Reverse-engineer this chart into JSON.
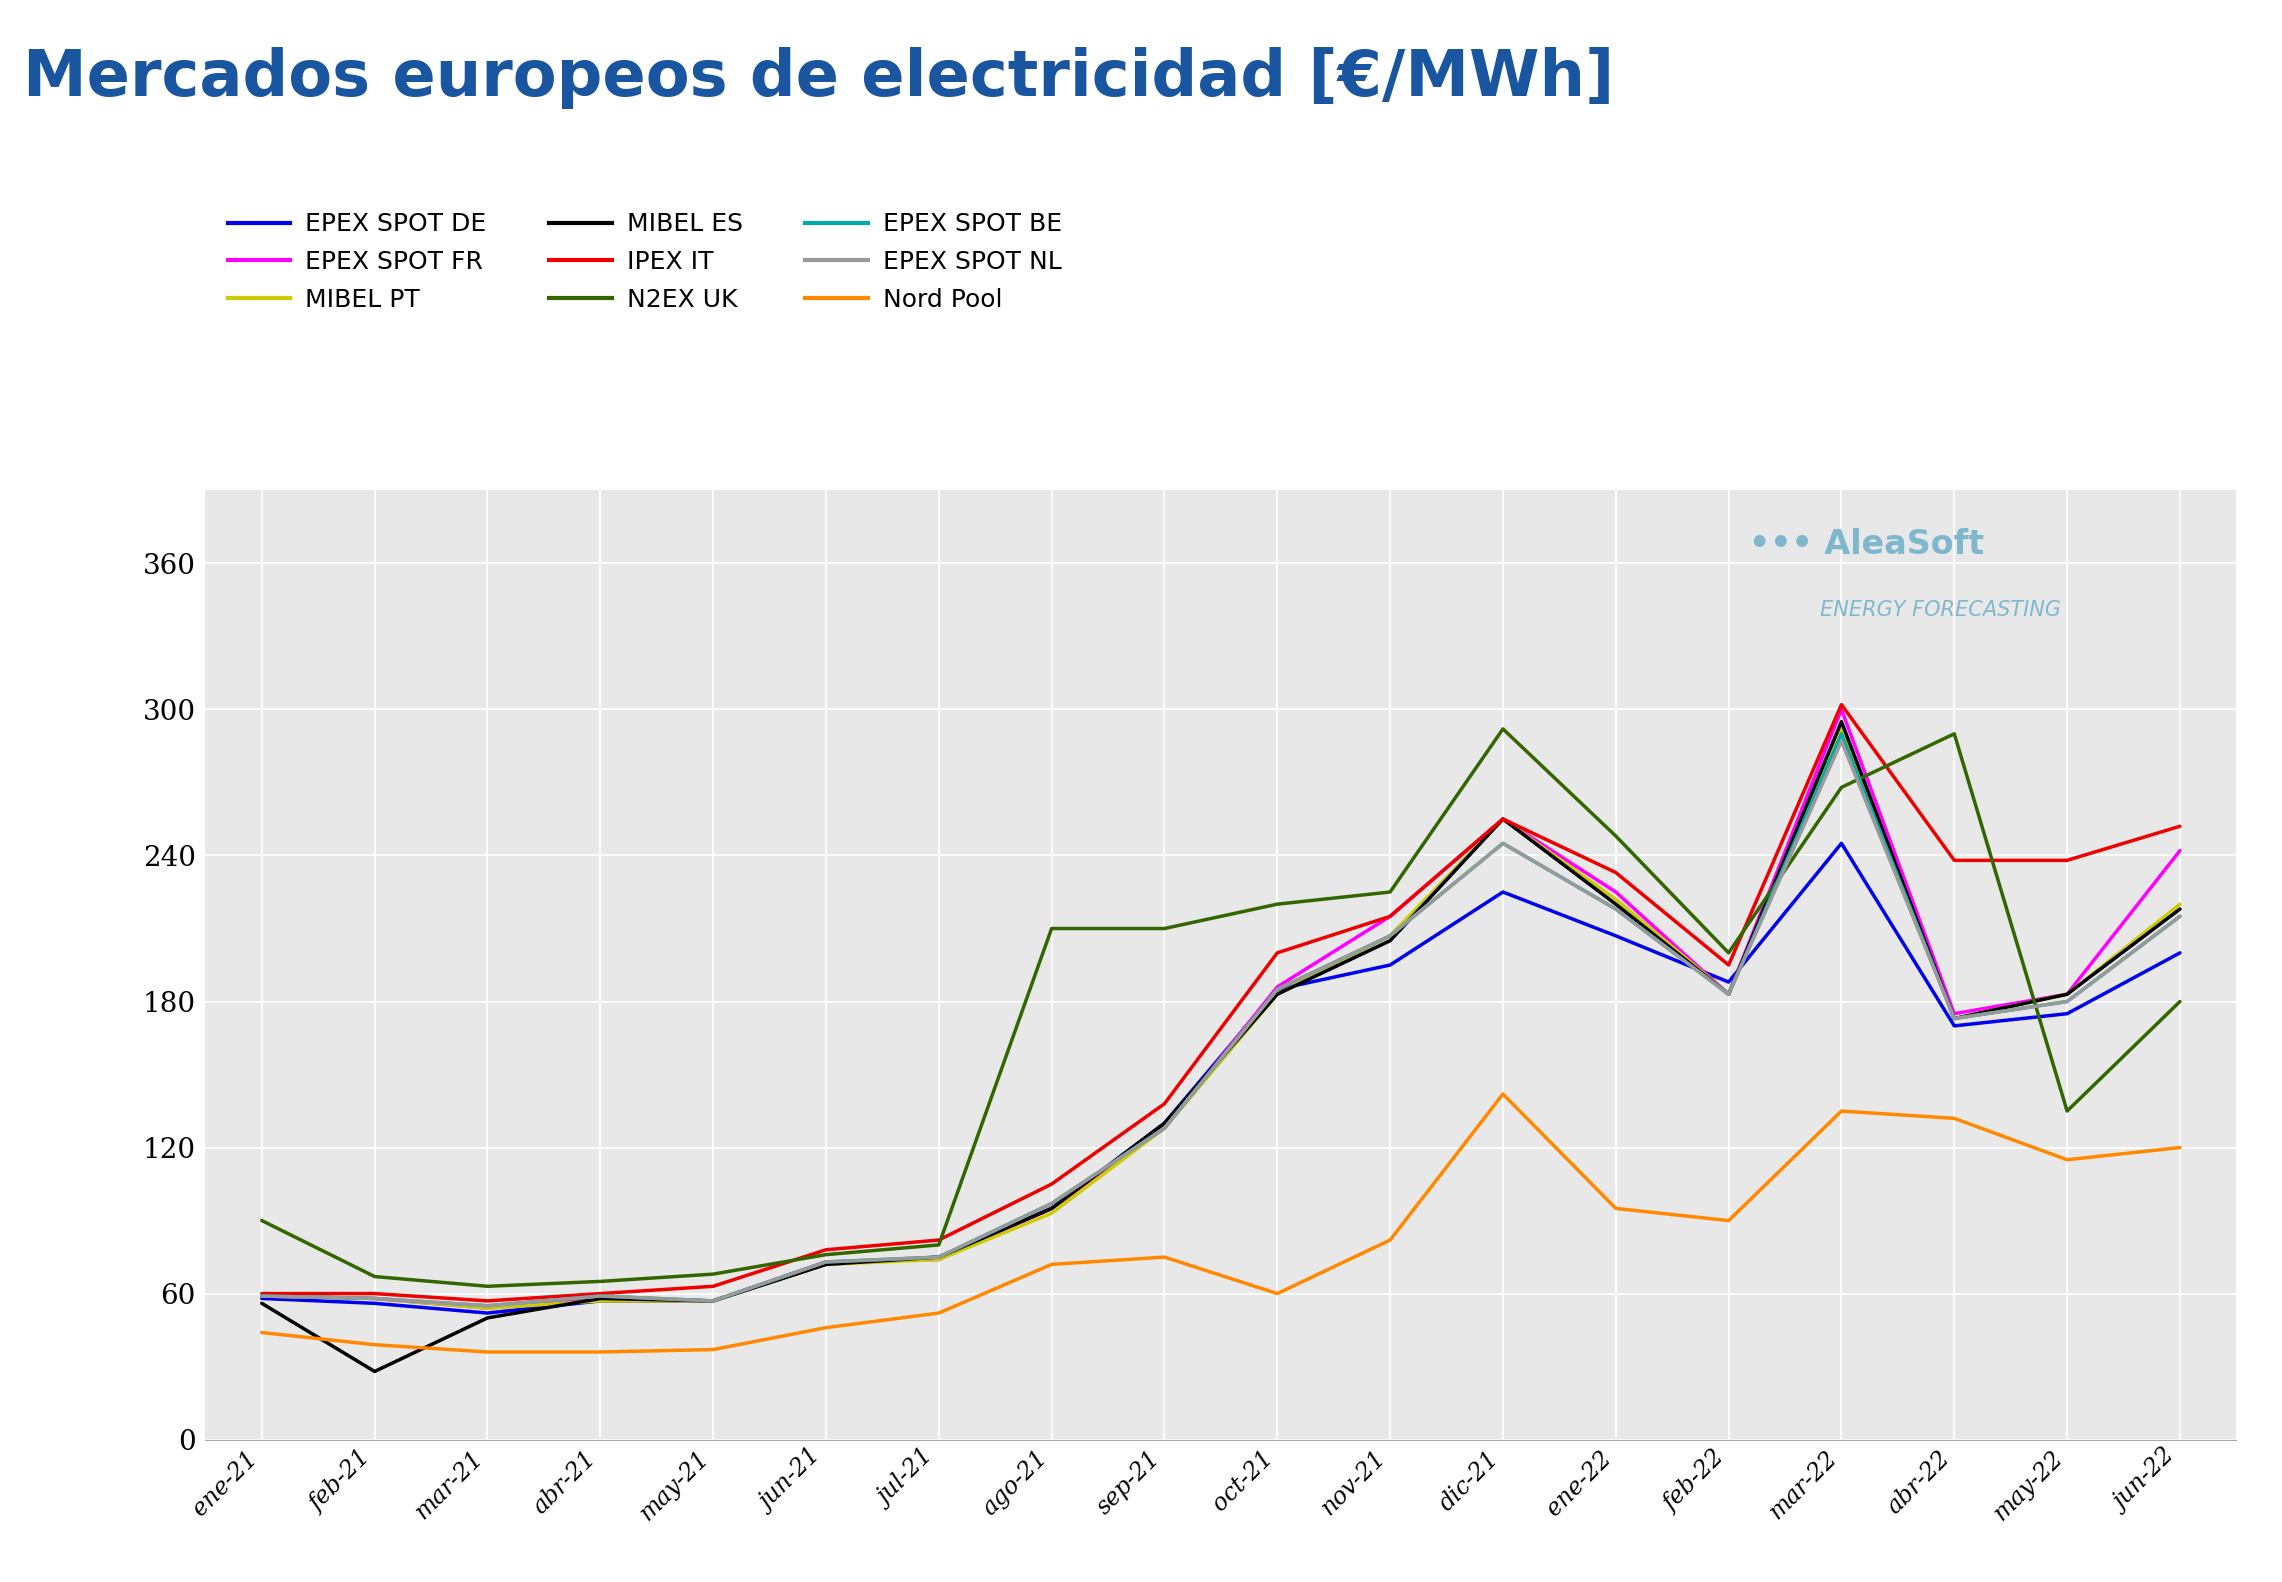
{
  "title": "Mercados europeos de electricidad [€/MWh]",
  "title_color": "#1a56a0",
  "background_color": "#ffffff",
  "plot_background": "#e8e8e8",
  "x_labels": [
    "ene-21",
    "feb-21",
    "mar-21",
    "abr-21",
    "may-21",
    "jun-21",
    "jul-21",
    "ago-21",
    "sep-21",
    "oct-21",
    "nov-21",
    "dic-21",
    "ene-22",
    "feb-22",
    "mar-22",
    "abr-22",
    "may-22",
    "jun-22"
  ],
  "ylim": [
    0,
    390
  ],
  "yticks": [
    0,
    60,
    120,
    180,
    240,
    300,
    360
  ],
  "series": {
    "EPEX SPOT DE": {
      "color": "#0000ee",
      "data": [
        58,
        56,
        52,
        57,
        57,
        72,
        75,
        95,
        130,
        185,
        195,
        225,
        207,
        188,
        245,
        170,
        175,
        200
      ]
    },
    "EPEX SPOT FR": {
      "color": "#ff00ff",
      "data": [
        59,
        58,
        54,
        58,
        57,
        73,
        74,
        95,
        128,
        186,
        215,
        255,
        225,
        183,
        300,
        175,
        183,
        242
      ]
    },
    "MIBEL PT": {
      "color": "#cccc00",
      "data": [
        59,
        58,
        54,
        57,
        57,
        72,
        74,
        93,
        128,
        183,
        207,
        255,
        222,
        183,
        292,
        173,
        183,
        220
      ]
    },
    "MIBEL ES": {
      "color": "#000000",
      "data": [
        56,
        28,
        50,
        58,
        57,
        72,
        75,
        95,
        130,
        183,
        205,
        255,
        220,
        183,
        295,
        173,
        183,
        218
      ]
    },
    "IPEX IT": {
      "color": "#ee0000",
      "data": [
        60,
        60,
        57,
        60,
        63,
        78,
        82,
        105,
        138,
        200,
        215,
        255,
        233,
        195,
        302,
        238,
        238,
        252
      ]
    },
    "N2EX UK": {
      "color": "#336600",
      "data": [
        90,
        67,
        63,
        65,
        68,
        76,
        80,
        210,
        210,
        220,
        225,
        292,
        248,
        200,
        268,
        290,
        135,
        180
      ]
    },
    "EPEX SPOT BE": {
      "color": "#00aaaa",
      "data": [
        59,
        58,
        55,
        59,
        57,
        73,
        75,
        97,
        128,
        185,
        207,
        245,
        218,
        183,
        290,
        173,
        180,
        215
      ]
    },
    "EPEX SPOT NL": {
      "color": "#999999",
      "data": [
        59,
        58,
        55,
        59,
        57,
        73,
        75,
        97,
        128,
        185,
        207,
        245,
        218,
        183,
        287,
        173,
        180,
        215
      ]
    },
    "Nord Pool": {
      "color": "#ff8800",
      "data": [
        44,
        39,
        36,
        36,
        37,
        46,
        52,
        72,
        75,
        60,
        82,
        142,
        95,
        90,
        135,
        132,
        115,
        120
      ]
    }
  },
  "legend_order": [
    "EPEX SPOT DE",
    "EPEX SPOT FR",
    "MIBEL PT",
    "MIBEL ES",
    "IPEX IT",
    "N2EX UK",
    "EPEX SPOT BE",
    "EPEX SPOT NL",
    "Nord Pool"
  ],
  "watermark_main": "••• AleaSoft",
  "watermark_sub": "ENERGY FORECASTING",
  "watermark_color": "#7fb8cc"
}
